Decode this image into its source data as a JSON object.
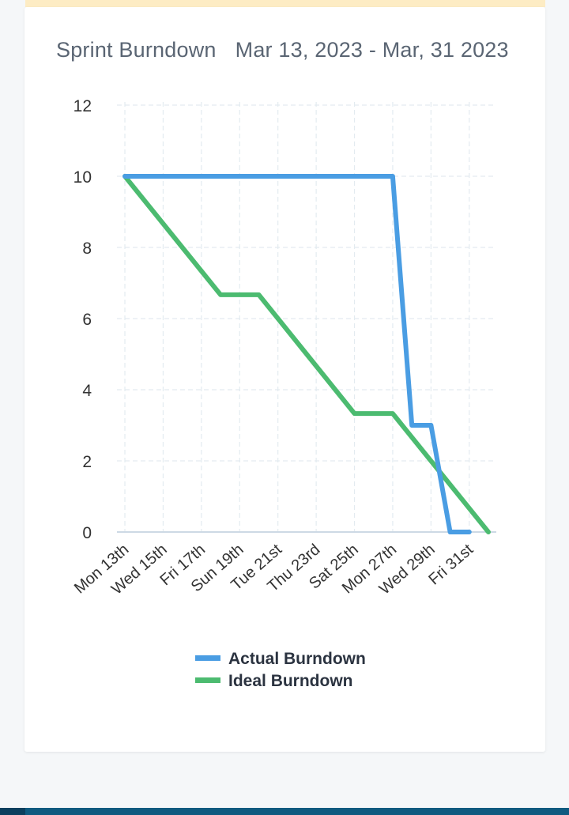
{
  "chart_data": {
    "type": "line",
    "title": "Sprint Burndown",
    "subtitle": "Mar 13, 2023 - Mar, 31 2023",
    "x_tick_labels": [
      "Mon 13th",
      "Wed 15th",
      "Fri 17th",
      "Sun 19th",
      "Tue 21st",
      "Thu 23rd",
      "Sat 25th",
      "Mon 27th",
      "Wed 29th",
      "Fri 31st"
    ],
    "y_ticks": [
      0,
      2,
      4,
      6,
      8,
      10,
      12
    ],
    "ylim": [
      0,
      12
    ],
    "xlim": [
      "2023-03-13",
      "2023-04-01"
    ],
    "grid": true,
    "legend_position": "bottom",
    "series": [
      {
        "name": "Actual Burndown",
        "color": "#4a9de3",
        "points": [
          {
            "x": "2023-03-13",
            "y": 10
          },
          {
            "x": "2023-03-27",
            "y": 10
          },
          {
            "x": "2023-03-28",
            "y": 3
          },
          {
            "x": "2023-03-29",
            "y": 3
          },
          {
            "x": "2023-03-30",
            "y": 0
          },
          {
            "x": "2023-03-31",
            "y": 0
          }
        ]
      },
      {
        "name": "Ideal Burndown",
        "color": "#4cbb70",
        "points": [
          {
            "x": "2023-03-13",
            "y": 10
          },
          {
            "x": "2023-03-18",
            "y": 6.67
          },
          {
            "x": "2023-03-20",
            "y": 6.67
          },
          {
            "x": "2023-03-25",
            "y": 3.33
          },
          {
            "x": "2023-03-27",
            "y": 3.33
          },
          {
            "x": "2023-04-01",
            "y": 0
          }
        ]
      }
    ]
  }
}
